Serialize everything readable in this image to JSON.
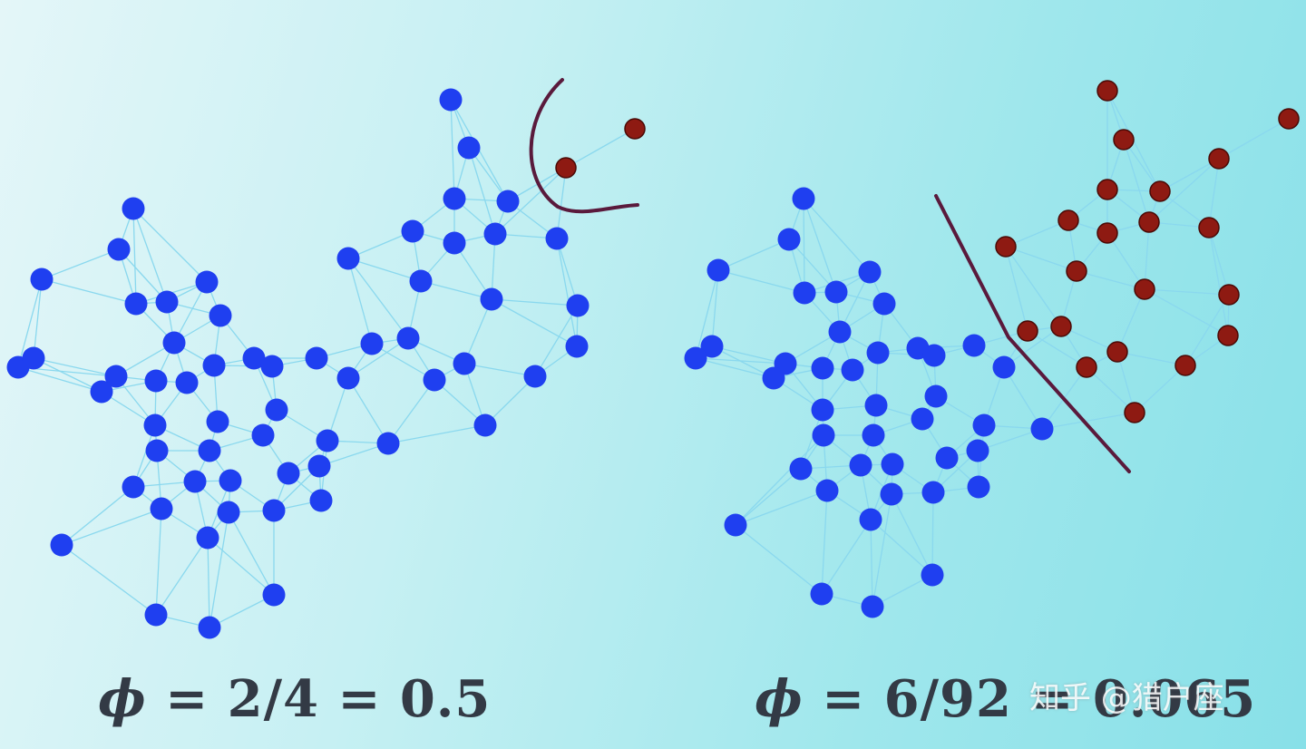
{
  "formulas": {
    "left": {
      "symbol": "ϕ",
      "expression": " = 2/4 = 0.5"
    },
    "right": {
      "symbol": "ϕ",
      "expression": " = 6/92 = 0.065"
    }
  },
  "watermark": "知乎 @猎户座",
  "colors": {
    "node_blue": "#1f3ff0",
    "node_red": "#8e1a12",
    "edge": "#8ad8ee",
    "cut_line": "#5a1a3c"
  }
}
